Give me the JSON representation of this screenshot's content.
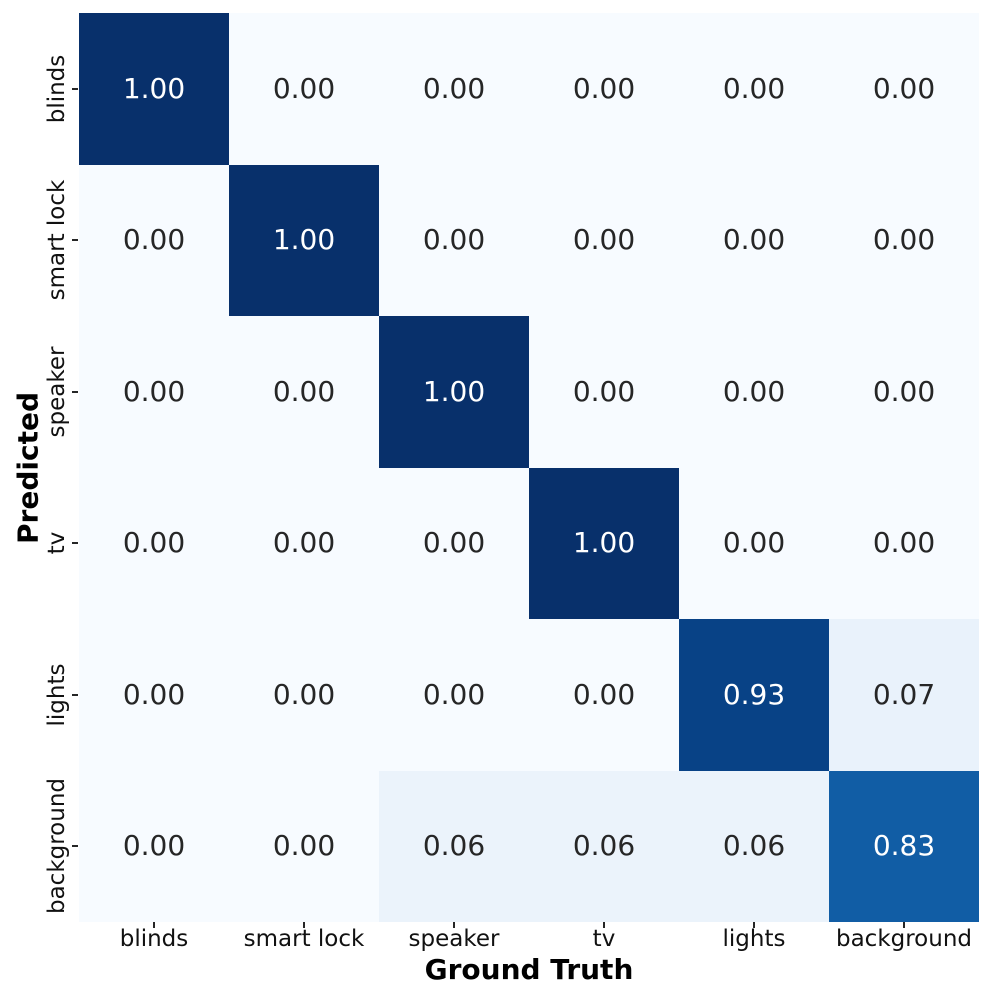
{
  "chart_data": {
    "type": "heatmap",
    "title": "",
    "xlabel": "Ground Truth",
    "ylabel": "Predicted",
    "x_categories": [
      "blinds",
      "smart lock",
      "speaker",
      "tv",
      "lights",
      "background"
    ],
    "y_categories": [
      "blinds",
      "smart lock",
      "speaker",
      "tv",
      "lights",
      "background"
    ],
    "matrix": [
      [
        1.0,
        0.0,
        0.0,
        0.0,
        0.0,
        0.0
      ],
      [
        0.0,
        1.0,
        0.0,
        0.0,
        0.0,
        0.0
      ],
      [
        0.0,
        0.0,
        1.0,
        0.0,
        0.0,
        0.0
      ],
      [
        0.0,
        0.0,
        0.0,
        1.0,
        0.0,
        0.0
      ],
      [
        0.0,
        0.0,
        0.0,
        0.0,
        0.93,
        0.07
      ],
      [
        0.0,
        0.0,
        0.06,
        0.06,
        0.06,
        0.83
      ]
    ],
    "value_decimals": 2,
    "vmin": 0,
    "vmax": 1,
    "colormap": "Blues",
    "grid": false,
    "legend": "none",
    "annotations": true
  },
  "colors": {
    "figure_background": "#ffffff",
    "blues_anchors": [
      "#f7fbff",
      "#deebf7",
      "#c6dbef",
      "#9ecae1",
      "#6baed6",
      "#4292c6",
      "#2171b5",
      "#08519c",
      "#08306b"
    ],
    "annotation_dark_text": "#262626",
    "annotation_light_text": "#ffffff",
    "tick_mark_color": "#262626",
    "axis_label_color": "#000000"
  }
}
